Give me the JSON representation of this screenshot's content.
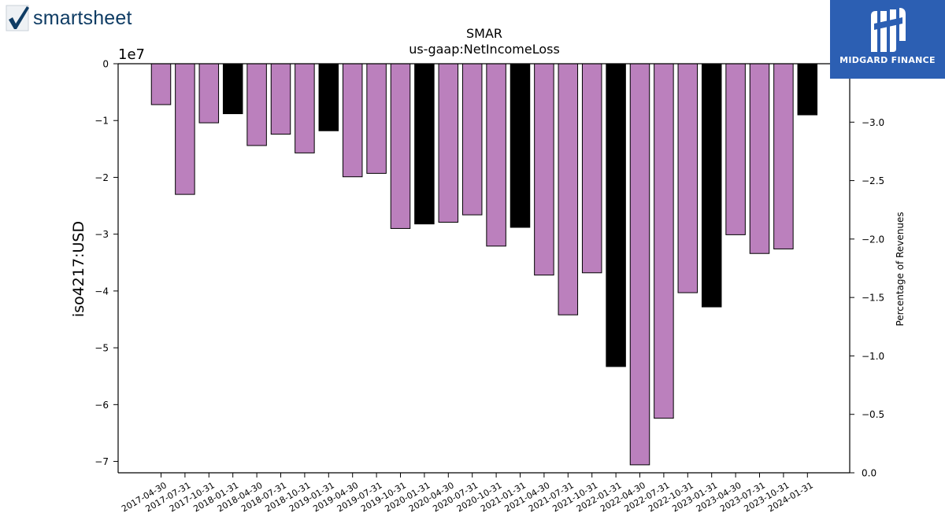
{
  "branding": {
    "left_logo_text": "smartsheet",
    "right_logo_text": "MIDGARD FINANCE",
    "right_logo_bg": "#2c5fb3"
  },
  "chart_data": {
    "type": "bar",
    "title": "SMAR",
    "subtitle": "us-gaap:NetIncomeLoss",
    "ylabel": "iso4217:USD",
    "y_offset_label": "1e7",
    "y2label": "Percentage of Revenues",
    "ylim": [
      -72000000,
      0
    ],
    "y2lim": [
      0.0,
      3.5
    ],
    "y_ticks": [
      {
        "value": 0,
        "label": "0"
      },
      {
        "value": -10000000,
        "label": "−1"
      },
      {
        "value": -20000000,
        "label": "−2"
      },
      {
        "value": -30000000,
        "label": "−3"
      },
      {
        "value": -40000000,
        "label": "−4"
      },
      {
        "value": -50000000,
        "label": "−5"
      },
      {
        "value": -60000000,
        "label": "−6"
      },
      {
        "value": -70000000,
        "label": "−7"
      }
    ],
    "y2_ticks": [
      {
        "value": 0.0,
        "label": "0.0"
      },
      {
        "value": 0.5,
        "label": "−0.5"
      },
      {
        "value": 1.0,
        "label": "−1.0"
      },
      {
        "value": 1.5,
        "label": "−1.5"
      },
      {
        "value": 2.0,
        "label": "−2.0"
      },
      {
        "value": 2.5,
        "label": "−2.5"
      },
      {
        "value": 3.0,
        "label": "−3.0"
      }
    ],
    "colors": {
      "quarter": "#bb80bd",
      "fiscal_year_end": "#000000",
      "edge": "#000000"
    },
    "categories": [
      "2017-04-30",
      "2017-07-31",
      "2017-10-31",
      "2018-01-31",
      "2018-04-30",
      "2018-07-31",
      "2018-10-31",
      "2019-01-31",
      "2019-04-30",
      "2019-07-31",
      "2019-10-31",
      "2020-01-31",
      "2020-04-30",
      "2020-07-31",
      "2020-10-31",
      "2021-01-31",
      "2021-04-30",
      "2021-07-31",
      "2021-10-31",
      "2022-01-31",
      "2022-04-30",
      "2022-07-31",
      "2022-10-31",
      "2023-01-31",
      "2023-04-30",
      "2023-07-31",
      "2023-10-31",
      "2024-01-31"
    ],
    "values": [
      -7200000,
      -23000000,
      -10400000,
      -8800000,
      -14400000,
      -12400000,
      -15700000,
      -11800000,
      -19900000,
      -19300000,
      -29000000,
      -28200000,
      -27900000,
      -26600000,
      -32100000,
      -28800000,
      -37200000,
      -44200000,
      -36800000,
      -53300000,
      -70600000,
      -62400000,
      -40300000,
      -42800000,
      -30100000,
      -33400000,
      -32600000,
      -9000000
    ],
    "fiscal_year_end": [
      false,
      false,
      false,
      true,
      false,
      false,
      false,
      true,
      false,
      false,
      false,
      true,
      false,
      false,
      false,
      true,
      false,
      false,
      false,
      true,
      false,
      false,
      false,
      true,
      false,
      false,
      false,
      true
    ]
  }
}
